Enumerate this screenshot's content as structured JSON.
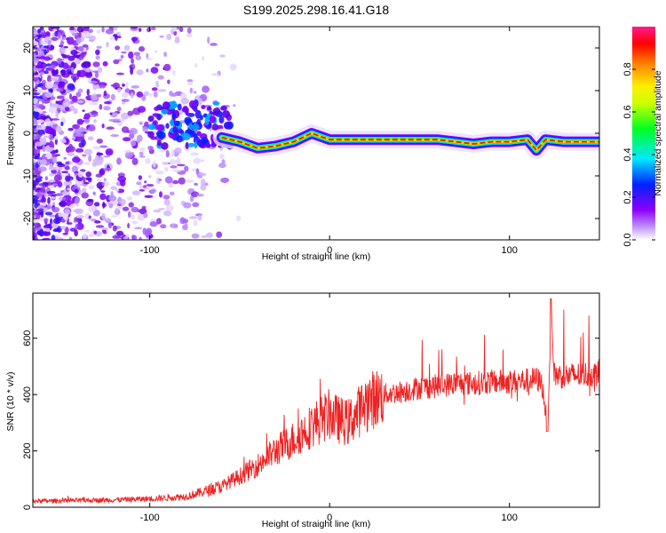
{
  "figure": {
    "title": "S199.2025.298.16.41.G18"
  },
  "chart_data": [
    {
      "type": "heatmap",
      "xlabel": "Height of straight line (km)",
      "ylabel": "Frequency (Hz)",
      "xlim": [
        -165,
        150
      ],
      "ylim": [
        -25,
        25
      ],
      "xticks": [
        -100,
        0,
        100
      ],
      "yticks": [
        -20,
        -10,
        0,
        10,
        20
      ],
      "colorbar": {
        "label": "Normalized spectral amplitude",
        "range": [
          0,
          1
        ],
        "ticks": [
          0.0,
          0.2,
          0.4,
          0.6,
          0.8
        ],
        "colormap": "rainbow (white - purple - blue - cyan - green - yellow - orange - red - magenta)"
      },
      "ridge": {
        "description": "dominant frequency track vs height",
        "x": [
          -100,
          -90,
          -80,
          -70,
          -60,
          -50,
          -40,
          -30,
          -20,
          -10,
          0,
          10,
          20,
          30,
          40,
          50,
          60,
          70,
          80,
          90,
          100,
          110,
          115,
          120,
          130,
          140,
          150
        ],
        "y": [
          -1,
          2,
          1,
          0,
          -1,
          -2,
          -3.5,
          -3,
          -2,
          0,
          -1.5,
          -1.5,
          -1.5,
          -1.5,
          -1.5,
          -1.5,
          -1.5,
          -2,
          -2.5,
          -2,
          -2,
          -1.5,
          -4,
          -1.5,
          -2,
          -2,
          -2
        ]
      }
    },
    {
      "type": "line",
      "xlabel": "Height of straight line (km)",
      "ylabel": "SNR (10 * v/v)",
      "xlim": [
        -165,
        150
      ],
      "ylim": [
        0,
        760
      ],
      "xticks": [
        -100,
        0,
        100
      ],
      "yticks": [
        0,
        200,
        400,
        600
      ],
      "color": "#ee2222",
      "series": [
        {
          "x": [
            -165,
            -140,
            -120,
            -100,
            -80,
            -70,
            -60,
            -50,
            -40,
            -30,
            -20,
            -10,
            0,
            5,
            10,
            15,
            20,
            30,
            40,
            50,
            60,
            70,
            80,
            90,
            100,
            110,
            115,
            118,
            121,
            122,
            123,
            125,
            130,
            140,
            150
          ],
          "y": [
            22,
            24,
            26,
            30,
            38,
            55,
            75,
            110,
            150,
            200,
            240,
            290,
            330,
            310,
            300,
            330,
            370,
            400,
            410,
            425,
            430,
            440,
            440,
            445,
            445,
            450,
            455,
            440,
            300,
            450,
            690,
            470,
            465,
            470,
            475
          ]
        }
      ]
    }
  ]
}
